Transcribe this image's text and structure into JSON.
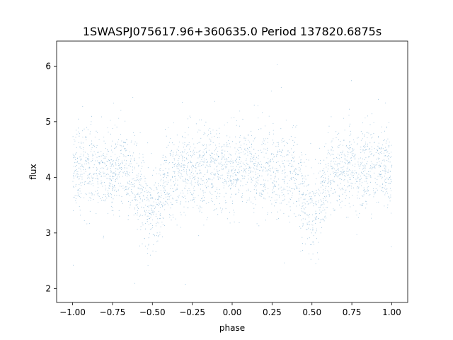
{
  "chart_data": {
    "type": "scatter",
    "title": "1SWASPJ075617.96+360635.0 Period 137820.6875s",
    "xlabel": "phase",
    "ylabel": "flux",
    "xlim": [
      -1.1,
      1.1
    ],
    "ylim": [
      1.75,
      6.45
    ],
    "xticks": [
      -1.0,
      -0.75,
      -0.5,
      -0.25,
      0.0,
      0.25,
      0.5,
      0.75,
      1.0
    ],
    "xtick_labels": [
      "−1.00",
      "−0.75",
      "−0.50",
      "−0.25",
      "0.00",
      "0.25",
      "0.50",
      "0.75",
      "1.00"
    ],
    "yticks": [
      2,
      3,
      4,
      5,
      6
    ],
    "ytick_labels": [
      "2",
      "3",
      "4",
      "5",
      "6"
    ],
    "grid": false,
    "legend": "none",
    "point_color": "#1f77b4",
    "x_range": [
      -1.0,
      1.0
    ],
    "baseline_flux": 4.15,
    "scatter_sigma": 0.38,
    "flux_range": [
      1.95,
      6.25
    ],
    "eclipses": [
      {
        "phase": -0.5,
        "depth": 0.75,
        "width": 0.06
      },
      {
        "phase": 0.5,
        "depth": 0.75,
        "width": 0.06
      }
    ],
    "point_count": 60000
  }
}
